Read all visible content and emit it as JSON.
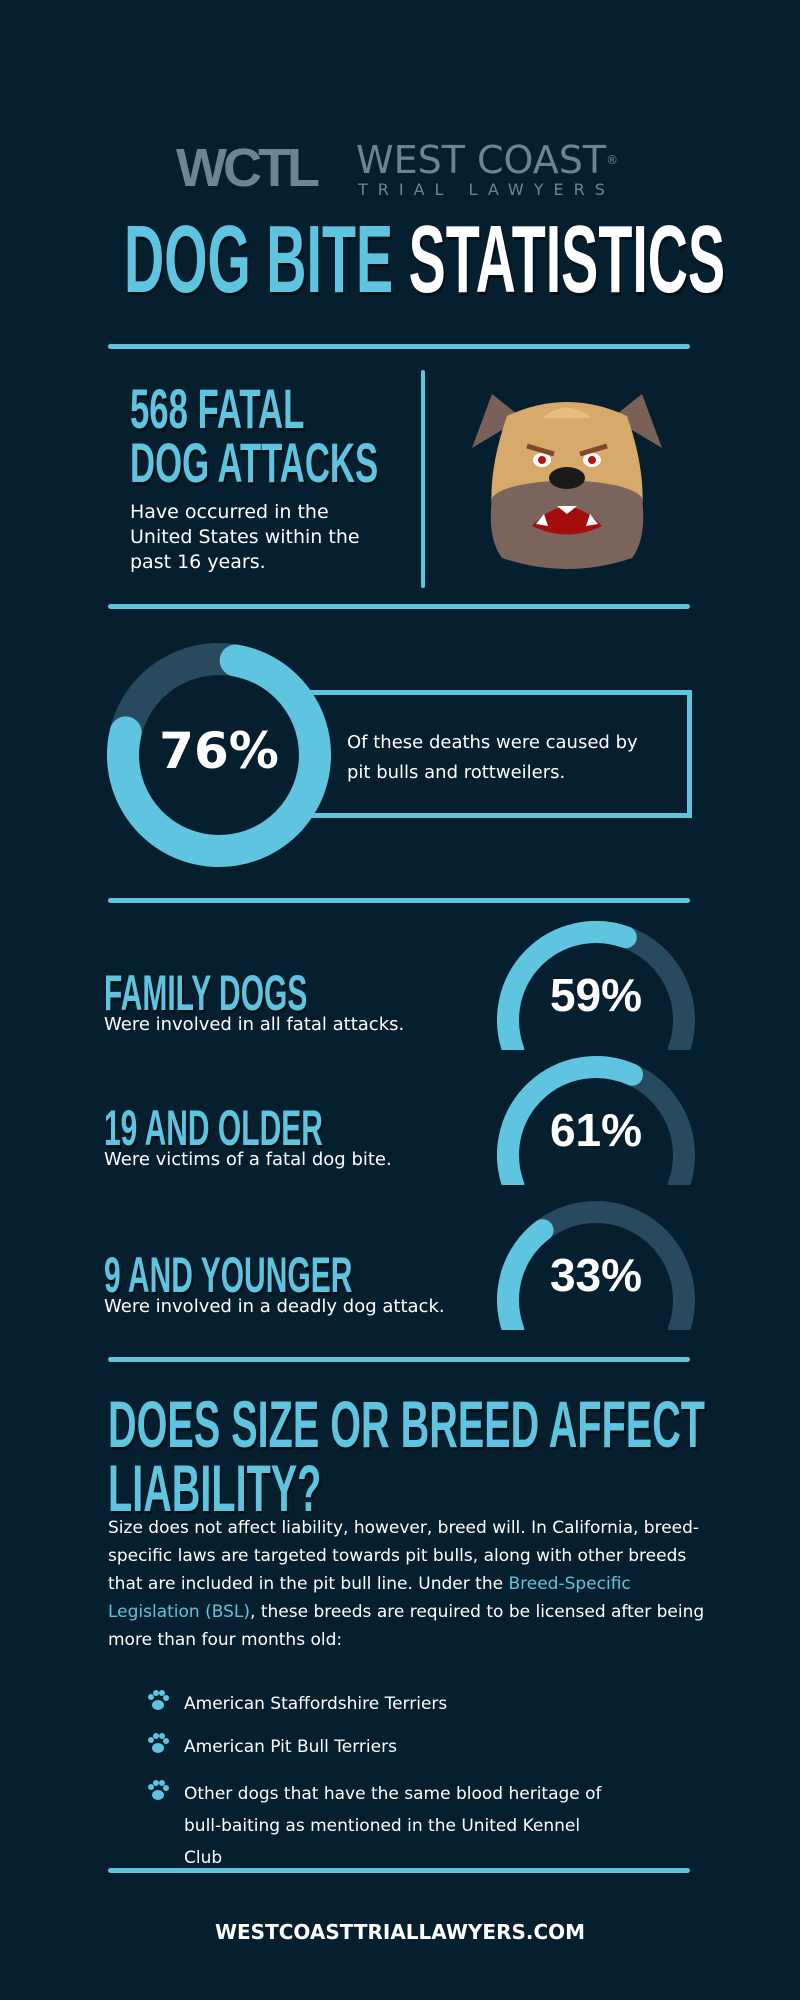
{
  "colors": {
    "background": "#061f2e",
    "accent": "#5ec4e0",
    "track": "#274a5e",
    "logo": "#6b8593"
  },
  "logo": {
    "mark": "WCTL",
    "name_line1": "WEST COAST",
    "registered": "®",
    "name_line2": "TRIAL LAWYERS"
  },
  "title": {
    "part1": "DOG BITE",
    "part2": "STATISTICS"
  },
  "fatal": {
    "heading_line1": "568 FATAL",
    "heading_line2": "DOG ATTACKS",
    "body": "Have occurred in the United States within the past 16 years.",
    "icon": "angry-bulldog-icon"
  },
  "donut": {
    "value": 76,
    "label": "76%",
    "text": "Of these deaths were caused by pit bulls and rottweilers."
  },
  "stats": [
    {
      "heading": "FAMILY DOGS",
      "text": "Were involved in all fatal attacks.",
      "value": 59,
      "label": "59%"
    },
    {
      "heading": "19 AND OLDER",
      "text": "Were victims of a fatal dog bite.",
      "value": 61,
      "label": "61%"
    },
    {
      "heading": "9 AND YOUNGER",
      "text": "Were involved in a deadly dog attack.",
      "value": 33,
      "label": "33%"
    }
  ],
  "liability": {
    "heading_line1": "DOES SIZE OR BREED AFFECT",
    "heading_line2": "LIABILITY?",
    "para_before": "Size does not affect liability, however, breed will. In California, breed-specific laws are targeted towards pit bulls, along with other breeds that are included in the pit bull line. Under the ",
    "link": "Breed-Specific Legislation (BSL)",
    "para_after": ", these breeds are required to be licensed after being more than four months old:",
    "bullet_icon": "paw-icon",
    "bullets": [
      "American Staffordshire Terriers",
      "American Pit Bull Terriers",
      "Other dogs that have the same blood heritage of bull-baiting as mentioned in the United Kennel Club"
    ]
  },
  "footer": {
    "website": "WESTCOASTTRIALLAWYERS.COM"
  }
}
